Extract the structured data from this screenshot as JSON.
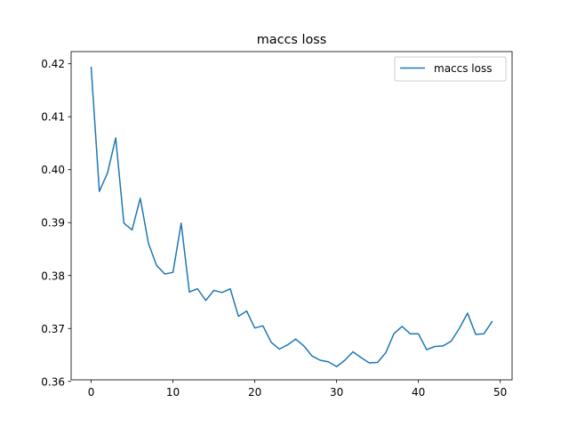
{
  "chart_data": {
    "type": "line",
    "title": "maccs loss",
    "xlabel": "",
    "ylabel": "",
    "xlim": [
      -2.45,
      51.45
    ],
    "ylim": [
      0.3603,
      0.4223
    ],
    "x_ticks": [
      0,
      10,
      20,
      30,
      40,
      50
    ],
    "x_tick_labels": [
      "0",
      "10",
      "20",
      "30",
      "40",
      "50"
    ],
    "y_ticks": [
      0.36,
      0.37,
      0.38,
      0.39,
      0.4,
      0.41,
      0.42
    ],
    "y_tick_labels": [
      "0.36",
      "0.37",
      "0.38",
      "0.39",
      "0.40",
      "0.41",
      "0.42"
    ],
    "grid": false,
    "legend": {
      "placement": "upper right",
      "entries": [
        "maccs loss"
      ]
    },
    "series": [
      {
        "name": "maccs loss",
        "color": "#1f77b4",
        "x": [
          0,
          1,
          2,
          3,
          4,
          5,
          6,
          7,
          8,
          9,
          10,
          11,
          12,
          13,
          14,
          15,
          16,
          17,
          18,
          19,
          20,
          21,
          22,
          23,
          24,
          25,
          26,
          27,
          28,
          29,
          30,
          31,
          32,
          33,
          34,
          35,
          36,
          37,
          38,
          39,
          40,
          41,
          42,
          43,
          44,
          45,
          46,
          47,
          48,
          49
        ],
        "values": [
          0.4193,
          0.3959,
          0.3994,
          0.406,
          0.3899,
          0.3886,
          0.3946,
          0.3861,
          0.3819,
          0.3803,
          0.3806,
          0.3899,
          0.3769,
          0.3775,
          0.3753,
          0.3772,
          0.3768,
          0.3775,
          0.3723,
          0.3733,
          0.3701,
          0.3705,
          0.3674,
          0.3661,
          0.3669,
          0.368,
          0.3667,
          0.3648,
          0.364,
          0.3637,
          0.3628,
          0.364,
          0.3656,
          0.3645,
          0.3635,
          0.3636,
          0.3654,
          0.369,
          0.3704,
          0.369,
          0.369,
          0.366,
          0.3666,
          0.3667,
          0.3676,
          0.37,
          0.3729,
          0.3689,
          0.369,
          0.3713
        ]
      }
    ]
  }
}
